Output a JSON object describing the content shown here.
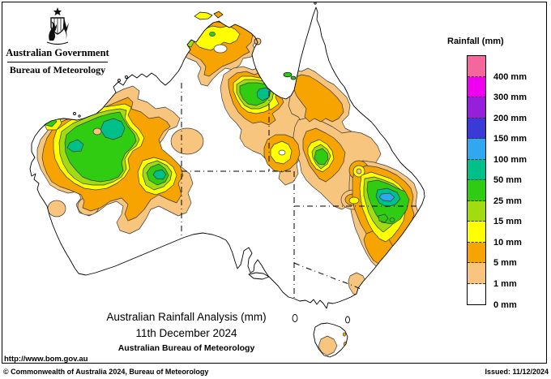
{
  "header": {
    "government": "Australian Government",
    "bureau": "Bureau of Meteorology"
  },
  "legend": {
    "title": "Rainfall (mm)",
    "entries": [
      {
        "color": "#F4679D",
        "label": "400 mm"
      },
      {
        "color": "#F000F0",
        "label": "300 mm"
      },
      {
        "color": "#951FDB",
        "label": "200 mm"
      },
      {
        "color": "#3A3AD6",
        "label": "150 mm"
      },
      {
        "color": "#2FA8F0",
        "label": "100 mm"
      },
      {
        "color": "#00C08A",
        "label": "50 mm"
      },
      {
        "color": "#30CC12",
        "label": "25 mm"
      },
      {
        "color": "#A0DC10",
        "label": "15 mm"
      },
      {
        "color": "#FFFF00",
        "label": "10 mm"
      },
      {
        "color": "#F7A300",
        "label": "5 mm"
      },
      {
        "color": "#F8C57E",
        "label": "1 mm"
      },
      {
        "color": "#FFFFFF",
        "label": "0 mm"
      }
    ]
  },
  "palette": {
    "lo": "#F8C57E",
    "o": "#F7A300",
    "y": "#FFFF00",
    "yg": "#A0DC10",
    "g": "#30CC12",
    "t": "#00C08A",
    "c": "#2FA8F0",
    "b": "#3A3AD6",
    "p": "#951FDB",
    "m": "#F000F0",
    "pk": "#F4679D"
  },
  "title": {
    "line1": "Australian Rainfall Analysis (mm)",
    "line2": "11th December 2024",
    "line3": "Australian Bureau of Meteorology"
  },
  "url": "http://www.bom.gov.au",
  "footer": {
    "copyright": "© Commonwealth of Australia 2024, Bureau of Meteorology",
    "issued": "Issued: 11/12/2024"
  }
}
